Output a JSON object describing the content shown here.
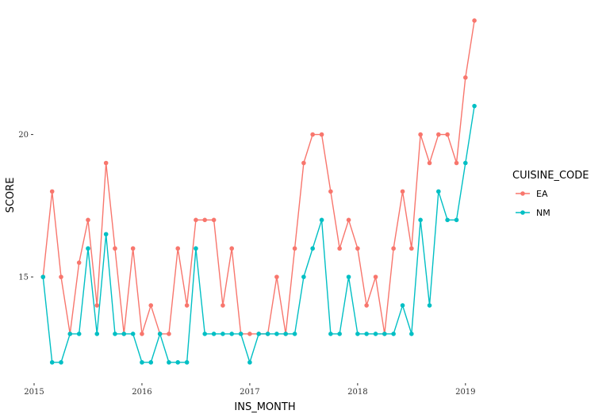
{
  "chart_data": {
    "type": "line",
    "title": "",
    "xlabel": "INS_MONTH",
    "ylabel": "SCORE",
    "xlim": [
      2015.0,
      2019.2
    ],
    "ylim": [
      11.3,
      24.5
    ],
    "x_ticks": [
      {
        "value": 2015,
        "label": "2015"
      },
      {
        "value": 2016,
        "label": "2016"
      },
      {
        "value": 2017,
        "label": "2017"
      },
      {
        "value": 2018,
        "label": "2018"
      },
      {
        "value": 2019,
        "label": "2019"
      }
    ],
    "y_ticks": [
      {
        "value": 15,
        "label": "15"
      },
      {
        "value": 20,
        "label": "20"
      }
    ],
    "grid": false,
    "legend": {
      "title": "CUISINE_CODE",
      "position": "right",
      "entries": [
        "EA",
        "NM"
      ]
    },
    "x": [
      2015.083,
      2015.167,
      2015.25,
      2015.333,
      2015.417,
      2015.5,
      2015.583,
      2015.667,
      2015.75,
      2015.833,
      2015.917,
      2016.0,
      2016.083,
      2016.167,
      2016.25,
      2016.333,
      2016.417,
      2016.5,
      2016.583,
      2016.667,
      2016.75,
      2016.833,
      2016.917,
      2017.0,
      2017.083,
      2017.167,
      2017.25,
      2017.333,
      2017.417,
      2017.5,
      2017.583,
      2017.667,
      2017.75,
      2017.833,
      2017.917,
      2018.0,
      2018.083,
      2018.167,
      2018.25,
      2018.333,
      2018.417,
      2018.5,
      2018.583,
      2018.667,
      2018.75,
      2018.833,
      2018.917,
      2019.0,
      2019.083
    ],
    "series": [
      {
        "name": "EA",
        "color": "#F8766D",
        "values": [
          15.0,
          18.0,
          15.0,
          13.0,
          15.5,
          17.0,
          14.0,
          19.0,
          16.0,
          13.0,
          16.0,
          13.0,
          14.0,
          13.0,
          13.0,
          16.0,
          14.0,
          17.0,
          17.0,
          17.0,
          14.0,
          16.0,
          13.0,
          13.0,
          13.0,
          13.0,
          15.0,
          13.0,
          16.0,
          19.0,
          20.0,
          20.0,
          18.0,
          16.0,
          17.0,
          16.0,
          14.0,
          15.0,
          13.0,
          16.0,
          18.0,
          16.0,
          20.0,
          19.0,
          20.0,
          20.0,
          19.0,
          22.0,
          24.0
        ]
      },
      {
        "name": "NM",
        "color": "#00BFC4",
        "values": [
          15.0,
          12.0,
          12.0,
          13.0,
          13.0,
          16.0,
          13.0,
          16.5,
          13.0,
          13.0,
          13.0,
          12.0,
          12.0,
          13.0,
          12.0,
          12.0,
          12.0,
          16.0,
          13.0,
          13.0,
          13.0,
          13.0,
          13.0,
          12.0,
          13.0,
          13.0,
          13.0,
          13.0,
          13.0,
          15.0,
          16.0,
          17.0,
          13.0,
          13.0,
          15.0,
          13.0,
          13.0,
          13.0,
          13.0,
          13.0,
          14.0,
          13.0,
          17.0,
          14.0,
          18.0,
          17.0,
          17.0,
          19.0,
          21.0
        ]
      }
    ]
  }
}
